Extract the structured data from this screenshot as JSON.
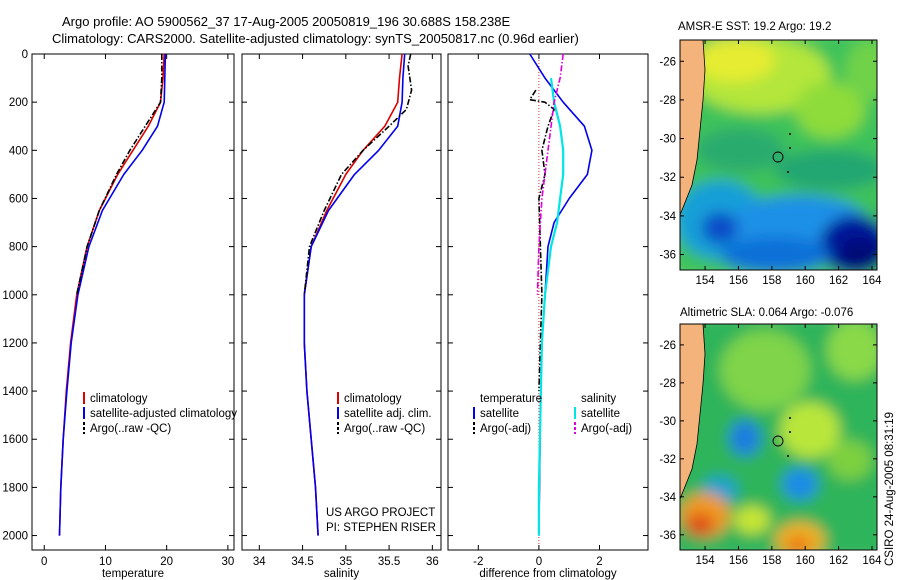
{
  "header": {
    "line1": "Argo profile: AO 5900562_37 17-Aug-2005 20050819_196 30.688S 158.238E",
    "line2": "Climatology: CARS2000. Satellite-adjusted climatology: synTS_20050817.nc (0.96d earlier)"
  },
  "side_label": "CSIRO 24-Aug-2005 08:31:19",
  "project": {
    "line1": "US ARGO PROJECT",
    "line2": "PI: STEPHEN RISER"
  },
  "colors": {
    "climatology": "#dd0000",
    "satellite": "#0000ee",
    "argo": "#000000",
    "argo_salinity_adj": "#dd00dd",
    "salinity_satellite": "#00e5e5",
    "land": "#f5b37c"
  },
  "chart_data": [
    {
      "type": "line",
      "name": "temperature-panel",
      "xlabel": "temperature",
      "ylabel": "",
      "xlim": [
        -2,
        31
      ],
      "ylim": [
        2060,
        0
      ],
      "xticks": [
        0,
        10,
        20,
        30
      ],
      "yticks": [
        0,
        200,
        400,
        600,
        800,
        1000,
        1200,
        1400,
        1600,
        1800,
        2000
      ],
      "legend": [
        "climatology",
        "satellite-adjusted climatology",
        "Argo(..raw -QC)"
      ],
      "legend_position": "lower-right",
      "series": [
        {
          "name": "climatology",
          "color": "red",
          "x": [
            19.6,
            19.4,
            19.0,
            17.0,
            14.5,
            12.0,
            9.0,
            7.0,
            5.3,
            4.3,
            3.6,
            3.1,
            2.7,
            2.5
          ],
          "y": [
            0,
            100,
            200,
            300,
            400,
            500,
            650,
            800,
            1000,
            1200,
            1400,
            1600,
            1800,
            2000
          ]
        },
        {
          "name": "satellite-adjusted climatology",
          "color": "blue",
          "x": [
            19.8,
            19.7,
            19.6,
            18.5,
            16.0,
            13.0,
            9.5,
            7.3,
            5.5,
            4.4,
            3.7,
            3.1,
            2.7,
            2.5
          ],
          "y": [
            0,
            100,
            200,
            300,
            400,
            500,
            650,
            800,
            1000,
            1200,
            1400,
            1600,
            1800,
            2000
          ]
        },
        {
          "name": "Argo(..raw -QC)",
          "color": "black",
          "dash": true,
          "x": [
            19.2,
            19.2,
            19.0,
            16.5,
            14.0,
            11.8,
            9.0,
            7.0,
            5.3
          ],
          "y": [
            0,
            100,
            200,
            300,
            400,
            500,
            650,
            800,
            1000
          ]
        }
      ]
    },
    {
      "type": "line",
      "name": "salinity-panel",
      "xlabel": "salinity",
      "ylabel": "",
      "xlim": [
        33.8,
        36.1
      ],
      "ylim": [
        2060,
        0
      ],
      "xticks": [
        34,
        34.5,
        35,
        35.5,
        36
      ],
      "legend": [
        "climatology",
        "satellite adj. clim.",
        "Argo(..raw -QC)"
      ],
      "legend_position": "lower-right",
      "series": [
        {
          "name": "climatology",
          "color": "red",
          "x": [
            35.65,
            35.62,
            35.6,
            35.45,
            35.2,
            35.0,
            34.78,
            34.6,
            34.52,
            34.52,
            34.55,
            34.6,
            34.65,
            34.68
          ],
          "y": [
            0,
            100,
            200,
            300,
            400,
            500,
            650,
            800,
            1000,
            1200,
            1400,
            1600,
            1800,
            2000
          ]
        },
        {
          "name": "satellite adj. clim.",
          "color": "blue",
          "x": [
            35.68,
            35.66,
            35.65,
            35.6,
            35.38,
            35.1,
            34.8,
            34.6,
            34.52,
            34.52,
            34.55,
            34.6,
            34.65,
            34.68
          ],
          "y": [
            0,
            100,
            200,
            300,
            400,
            500,
            650,
            800,
            1000,
            1200,
            1400,
            1600,
            1800,
            2000
          ]
        },
        {
          "name": "Argo(..raw -QC)",
          "color": "black",
          "dash": true,
          "x": [
            35.75,
            35.72,
            35.76,
            35.7,
            35.5,
            35.2,
            34.95,
            34.75,
            34.58,
            34.52
          ],
          "y": [
            0,
            50,
            150,
            230,
            300,
            400,
            500,
            650,
            800,
            1000
          ]
        }
      ]
    },
    {
      "type": "line",
      "name": "difference-panel",
      "xlabel": "difference from climatology",
      "ylabel": "",
      "xlim": [
        -3,
        3.6
      ],
      "ylim": [
        2060,
        0
      ],
      "xticks": [
        -2,
        0,
        2
      ],
      "legend": [
        "temperature",
        "satellite",
        "Argo(-adj)",
        "salinity",
        "satellite",
        "Argo(-adj)"
      ],
      "legend_position": "lower-center",
      "series": [
        {
          "name": "temperature satellite",
          "color": "blue",
          "x": [
            -0.3,
            0.2,
            0.8,
            1.5,
            1.75,
            1.6,
            1.0,
            0.5,
            0.3,
            0.2,
            0.1,
            0.05,
            0.02,
            0.0
          ],
          "y": [
            0,
            100,
            200,
            300,
            400,
            500,
            600,
            700,
            800,
            1000,
            1200,
            1500,
            1800,
            2000
          ]
        },
        {
          "name": "temperature Argo(-adj)",
          "color": "black",
          "dash": true,
          "x": [
            -0.1,
            -0.2,
            -0.3,
            0.2,
            0.5,
            0.3,
            0.1,
            0.2,
            0.0,
            0.05,
            0.1,
            0.05,
            0.0
          ],
          "y": [
            150,
            170,
            190,
            200,
            230,
            300,
            400,
            500,
            600,
            800,
            1000,
            1200,
            1400
          ]
        },
        {
          "name": "salinity satellite",
          "color": "cyan",
          "x": [
            0.4,
            0.5,
            0.7,
            0.8,
            0.8,
            0.7,
            0.6,
            0.4,
            0.2,
            0.1,
            0.05,
            0.0,
            0.0
          ],
          "y": [
            100,
            200,
            300,
            400,
            500,
            600,
            700,
            800,
            1000,
            1200,
            1500,
            1800,
            2000
          ]
        },
        {
          "name": "salinity Argo(-adj)",
          "color": "magenta",
          "dash": true,
          "x": [
            0.8,
            0.7,
            0.5,
            0.3,
            0.1,
            0.0,
            -0.05
          ],
          "y": [
            0,
            100,
            200,
            400,
            600,
            800,
            1000
          ]
        }
      ]
    },
    {
      "type": "heatmap",
      "name": "sst-map",
      "title": "AMSR-E SST: 19.2 Argo: 19.2",
      "xticks": [
        154,
        156,
        158,
        160,
        162,
        164
      ],
      "yticks": [
        -26,
        -28,
        -30,
        -32,
        -34,
        -36
      ],
      "xlim": [
        152.5,
        164.3
      ],
      "ylim": [
        -36.8,
        -24.9
      ],
      "argo_position": [
        158.24,
        -30.69
      ]
    },
    {
      "type": "heatmap",
      "name": "sla-map",
      "title": "Altimetric SLA: 0.064 Argo: -0.076",
      "xticks": [
        154,
        156,
        158,
        160,
        162,
        164
      ],
      "yticks": [
        -26,
        -28,
        -30,
        -32,
        -34,
        -36
      ],
      "xlim": [
        152.5,
        164.3
      ],
      "ylim": [
        -36.8,
        -24.9
      ],
      "argo_position": [
        158.24,
        -30.69
      ]
    }
  ]
}
